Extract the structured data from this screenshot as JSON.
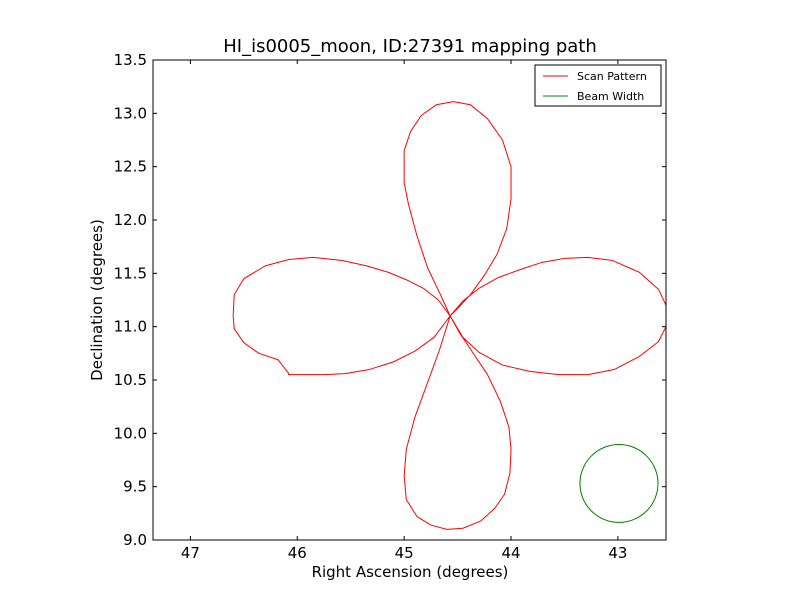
{
  "chart_data": {
    "type": "line",
    "title": "HI_is0005_moon, ID:27391 mapping path",
    "xlabel": "Right Ascension (degrees)",
    "ylabel": "Declination (degrees)",
    "xlim": [
      47.35,
      42.55
    ],
    "ylim": [
      9.0,
      13.5
    ],
    "x_ticks": [
      "47",
      "46",
      "45",
      "44",
      "43"
    ],
    "x_tick_values": [
      47,
      46,
      45,
      44,
      43
    ],
    "y_ticks": [
      "9.0",
      "9.5",
      "10.0",
      "10.5",
      "11.0",
      "11.5",
      "12.0",
      "12.5",
      "13.0",
      "13.5"
    ],
    "y_tick_values": [
      9.0,
      9.5,
      10.0,
      10.5,
      11.0,
      11.5,
      12.0,
      12.5,
      13.0,
      13.5
    ],
    "grid": false,
    "legend_position": "top-right",
    "series": [
      {
        "name": "Scan Pattern",
        "color": "#ff0000",
        "x": [
          44.57,
          44.68,
          44.82,
          44.98,
          45.15,
          45.35,
          45.58,
          45.85,
          46.08,
          46.3,
          46.5,
          46.59,
          46.6,
          46.59,
          46.5,
          46.36,
          46.18,
          46.08,
          46.08,
          45.75,
          45.55,
          45.32,
          45.1,
          44.9,
          44.72,
          44.57,
          44.66,
          44.78,
          44.88,
          44.96,
          45.0,
          45.0,
          44.94,
          44.84,
          44.7,
          44.54,
          44.38,
          44.22,
          44.08,
          44.0,
          44.0,
          44.04,
          44.13,
          44.25,
          44.38,
          44.5,
          44.57,
          44.45,
          44.3,
          44.12,
          43.93,
          43.72,
          43.5,
          43.28,
          43.05,
          42.8,
          42.62,
          42.55,
          42.55,
          42.62,
          42.8,
          43.03,
          43.28,
          43.55,
          43.82,
          44.08,
          44.3,
          44.45,
          44.57,
          44.48,
          44.36,
          44.22,
          44.1,
          44.02,
          44.0,
          44.01,
          44.06,
          44.15,
          44.28,
          44.45,
          44.6,
          44.75,
          44.88,
          44.98,
          45.0,
          44.98,
          44.9,
          44.79,
          44.67,
          44.57
        ],
        "y": [
          11.1,
          11.25,
          11.36,
          11.44,
          11.51,
          11.57,
          11.62,
          11.65,
          11.63,
          11.57,
          11.45,
          11.3,
          11.1,
          10.98,
          10.85,
          10.75,
          10.69,
          10.56,
          10.55,
          10.55,
          10.56,
          10.6,
          10.67,
          10.77,
          10.9,
          11.1,
          11.3,
          11.55,
          11.85,
          12.15,
          12.35,
          12.65,
          12.83,
          12.98,
          13.08,
          13.11,
          13.08,
          12.95,
          12.75,
          12.5,
          12.2,
          11.92,
          11.68,
          11.48,
          11.3,
          11.17,
          11.1,
          11.24,
          11.36,
          11.46,
          11.53,
          11.6,
          11.64,
          11.65,
          11.62,
          11.51,
          11.35,
          11.2,
          11.0,
          10.86,
          10.72,
          10.6,
          10.55,
          10.55,
          10.58,
          10.64,
          10.76,
          10.9,
          11.1,
          10.94,
          10.76,
          10.55,
          10.3,
          10.06,
          9.85,
          9.63,
          9.43,
          9.3,
          9.18,
          9.11,
          9.1,
          9.14,
          9.22,
          9.38,
          9.6,
          9.85,
          10.15,
          10.45,
          10.78,
          11.1
        ]
      },
      {
        "name": "Beam Width",
        "color": "#008000",
        "shape": "circle",
        "center": [
          42.99,
          9.53
        ],
        "radius": 0.365
      }
    ]
  }
}
